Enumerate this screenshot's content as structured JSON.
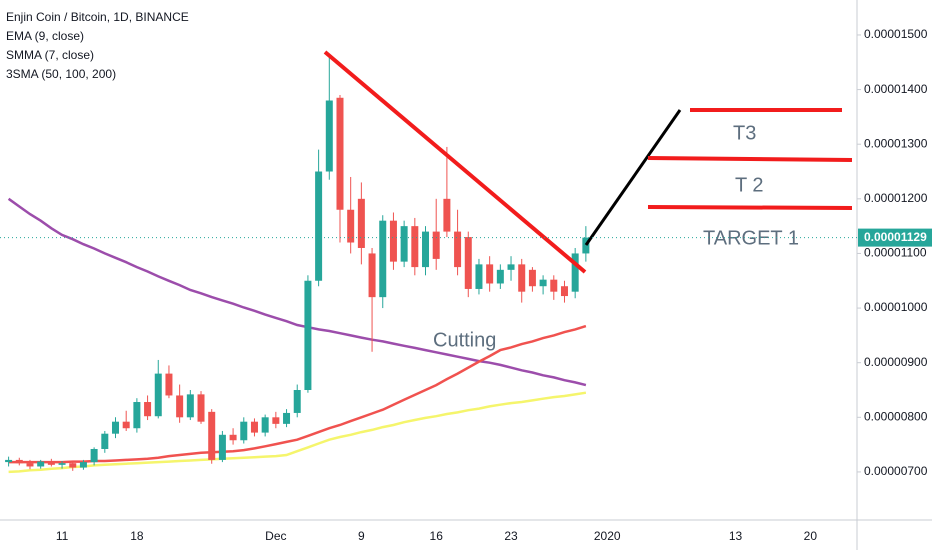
{
  "chart_data": {
    "type": "candlestick",
    "title": "Enjin Coin / Bitcoin, 1D, BINANCE",
    "indicators": [
      "EMA (9, close)",
      "SMMA (7, close)",
      "3SMA (50, 100, 200)"
    ],
    "annotations": [
      "T3",
      "T 2",
      "TARGET 1",
      "Cutting"
    ],
    "categories": [
      null,
      null,
      null,
      null,
      null,
      "11",
      null,
      null,
      null,
      null,
      null,
      null,
      "18",
      null,
      null,
      null,
      null,
      null,
      null,
      null,
      null,
      null,
      null,
      null,
      null,
      "Dec",
      null,
      null,
      null,
      null,
      null,
      null,
      null,
      "9",
      null,
      null,
      null,
      null,
      null,
      null,
      "16",
      null,
      null,
      null,
      null,
      null,
      null,
      "23",
      null,
      null,
      null,
      null,
      null,
      null,
      null,
      null,
      "2020",
      null,
      null,
      null,
      null,
      null,
      null,
      null,
      null,
      null,
      null,
      null,
      "13",
      null,
      null,
      null,
      null,
      null,
      null,
      "20",
      null,
      null,
      null,
      null
    ],
    "open": [
      7.18e-06,
      7.22e-06,
      7.16e-06,
      7.1e-06,
      7.19e-06,
      7.13e-06,
      7.16e-06,
      7.08e-06,
      7.18e-06,
      7.42e-06,
      7.7e-06,
      7.92e-06,
      7.8e-06,
      8.28e-06,
      8.02e-06,
      8.8e-06,
      8.4e-06,
      8e-06,
      8.42e-06,
      8.1e-06,
      7.22e-06,
      7.68e-06,
      7.58e-06,
      7.92e-06,
      7.72e-06,
      8e-06,
      7.88e-06,
      8.08e-06,
      8.5e-06,
      1.05e-05,
      1.25e-05,
      1.385e-05,
      1.18e-05,
      1.2e-05,
      1.1e-05,
      1.02e-05,
      1.16e-05,
      1.085e-05,
      1.15e-05,
      1.075e-05,
      1.14e-05,
      1.2e-05,
      1.14e-05,
      1.13e-05,
      1.035e-05,
      1.08e-05,
      1.045e-05,
      1.07e-05,
      1.08e-05,
      1.07e-05,
      1.04e-05,
      1.052e-05,
      1.04e-05,
      1.03e-05,
      1.1e-05,
      null,
      null,
      null,
      null,
      null,
      null,
      null,
      null,
      null,
      null,
      null,
      null,
      null,
      null,
      null,
      null,
      null,
      null,
      null,
      null,
      null,
      null,
      null,
      null,
      null
    ],
    "high": [
      7.28e-06,
      7.26e-06,
      7.22e-06,
      7.22e-06,
      7.24e-06,
      7.2e-06,
      7.2e-06,
      7.22e-06,
      7.45e-06,
      7.75e-06,
      8e-06,
      8.12e-06,
      8.35e-06,
      8.4e-06,
      9.05e-06,
      8.95e-06,
      8.6e-06,
      8.5e-06,
      8.48e-06,
      8.15e-06,
      7.75e-06,
      7.8e-06,
      8e-06,
      7.98e-06,
      8.05e-06,
      8.1e-06,
      8.15e-06,
      8.6e-06,
      1.06e-05,
      1.29e-05,
      1.465e-05,
      1.39e-05,
      1.24e-05,
      1.23e-05,
      1.11e-05,
      1.17e-05,
      1.175e-05,
      1.16e-05,
      1.165e-05,
      1.15e-05,
      1.2e-05,
      1.295e-05,
      1.18e-05,
      1.14e-05,
      1.09e-05,
      1.095e-05,
      1.08e-05,
      1.095e-05,
      1.09e-05,
      1.075e-05,
      1.06e-05,
      1.06e-05,
      1.05e-05,
      1.11e-05,
      1.15e-05,
      null,
      null,
      null,
      null,
      null,
      null,
      null,
      null,
      null,
      null,
      null,
      null,
      null,
      null,
      null,
      null,
      null,
      null,
      null,
      null,
      null,
      null,
      null,
      null,
      null
    ],
    "low": [
      7.1e-06,
      7.12e-06,
      7.05e-06,
      7.06e-06,
      7.1e-06,
      7.06e-06,
      7.02e-06,
      7.04e-06,
      7.12e-06,
      7.35e-06,
      7.62e-06,
      7.75e-06,
      7.72e-06,
      7.95e-06,
      7.98e-06,
      8.35e-06,
      7.9e-06,
      7.95e-06,
      7.88e-06,
      7.15e-06,
      7.18e-06,
      7.5e-06,
      7.52e-06,
      7.65e-06,
      7.65e-06,
      7.8e-06,
      7.82e-06,
      8e-06,
      8.45e-06,
      1.04e-05,
      1.235e-05,
      1.12e-05,
      1.1e-05,
      1.08e-05,
      9.2e-06,
      1e-05,
      1.07e-05,
      1.075e-05,
      1.06e-05,
      1.06e-05,
      1.07e-05,
      1.13e-05,
      1.06e-05,
      1.02e-05,
      1.025e-05,
      1.03e-05,
      1.035e-05,
      1.05e-05,
      1.01e-05,
      1.03e-05,
      1.025e-05,
      1.015e-05,
      1.01e-05,
      1.018e-05,
      1.085e-05,
      null,
      null,
      null,
      null,
      null,
      null,
      null,
      null,
      null,
      null,
      null,
      null,
      null,
      null,
      null,
      null,
      null,
      null,
      null,
      null,
      null,
      null,
      null,
      null,
      null
    ],
    "close": [
      7.22e-06,
      7.16e-06,
      7.1e-06,
      7.19e-06,
      7.13e-06,
      7.16e-06,
      7.08e-06,
      7.18e-06,
      7.42e-06,
      7.7e-06,
      7.92e-06,
      7.8e-06,
      8.28e-06,
      8.02e-06,
      8.8e-06,
      8.4e-06,
      8e-06,
      8.42e-06,
      7.92e-06,
      7.22e-06,
      7.68e-06,
      7.58e-06,
      7.92e-06,
      7.72e-06,
      8e-06,
      7.88e-06,
      8.08e-06,
      8.5e-06,
      1.05e-05,
      1.25e-05,
      1.38e-05,
      1.18e-05,
      1.12e-05,
      1.11e-05,
      1.02e-05,
      1.16e-05,
      1.085e-05,
      1.15e-05,
      1.075e-05,
      1.14e-05,
      1.09e-05,
      1.14e-05,
      1.075e-05,
      1.035e-05,
      1.08e-05,
      1.045e-05,
      1.07e-05,
      1.08e-05,
      1.03e-05,
      1.04e-05,
      1.052e-05,
      1.03e-05,
      1.022e-05,
      1.1e-05,
      1.129e-05,
      null,
      null,
      null,
      null,
      null,
      null,
      null,
      null,
      null,
      null,
      null,
      null,
      null,
      null,
      null,
      null,
      null,
      null,
      null,
      null,
      null,
      null,
      null,
      null,
      null
    ],
    "up_color": "#26a69a",
    "down_color": "#ef5350",
    "series": [
      {
        "color": "#9c4dab",
        "values": [
          1.2e-05,
          1.186e-05,
          1.172e-05,
          1.16e-05,
          1.146e-05,
          1.134e-05,
          1.126e-05,
          1.117e-05,
          1.109e-05,
          1.1e-05,
          1.092e-05,
          1.084e-05,
          1.075e-05,
          1.067e-05,
          1.058e-05,
          1.05e-05,
          1.042e-05,
          1.033e-05,
          1.027e-05,
          1.02e-05,
          1.014e-05,
          1.008e-05,
          1.001e-05,
          9.95e-06,
          9.88e-06,
          9.82e-06,
          9.76e-06,
          9.69e-06,
          9.65e-06,
          9.61e-06,
          9.58e-06,
          9.54e-06,
          9.5e-06,
          9.46e-06,
          9.42e-06,
          9.39e-06,
          9.35e-06,
          9.31e-06,
          9.27e-06,
          9.23e-06,
          9.19e-06,
          9.15e-06,
          9.11e-06,
          9.07e-06,
          9.03e-06,
          9e-06,
          8.96e-06,
          8.91e-06,
          8.86e-06,
          8.82e-06,
          8.77e-06,
          8.73e-06,
          8.68e-06,
          8.64e-06,
          8.59e-06,
          null,
          null,
          null,
          null,
          null,
          null,
          null,
          null,
          null,
          null,
          null,
          null,
          null,
          null,
          null,
          null,
          null,
          null,
          null,
          null,
          null,
          null,
          null,
          null,
          null
        ]
      },
      {
        "color": "#f0524f",
        "values": [
          7.18e-06,
          7.18e-06,
          7.18e-06,
          7.18e-06,
          7.18e-06,
          7.18e-06,
          7.19e-06,
          7.19e-06,
          7.2e-06,
          7.2e-06,
          7.21e-06,
          7.22e-06,
          7.23e-06,
          7.24e-06,
          7.26e-06,
          7.29e-06,
          7.31e-06,
          7.33e-06,
          7.35e-06,
          7.36e-06,
          7.37e-06,
          7.38e-06,
          7.4e-06,
          7.43e-06,
          7.47e-06,
          7.51e-06,
          7.55e-06,
          7.59e-06,
          7.66e-06,
          7.73e-06,
          7.8e-06,
          7.86e-06,
          7.93e-06,
          8e-06,
          8.07e-06,
          8.14e-06,
          8.23e-06,
          8.32e-06,
          8.41e-06,
          8.5e-06,
          8.59e-06,
          8.7e-06,
          8.8e-06,
          8.91e-06,
          9.02e-06,
          9.12e-06,
          9.23e-06,
          9.28e-06,
          9.34e-06,
          9.39e-06,
          9.45e-06,
          9.5e-06,
          9.56e-06,
          9.61e-06,
          9.67e-06,
          null,
          null,
          null,
          null,
          null,
          null,
          null,
          null,
          null,
          null,
          null,
          null,
          null,
          null,
          null,
          null,
          null,
          null,
          null,
          null,
          null,
          null,
          null,
          null,
          null
        ]
      },
      {
        "color": "#f5f56c",
        "values": [
          7e-06,
          7.01e-06,
          7.03e-06,
          7.04e-06,
          7.06e-06,
          7.07e-06,
          7.09e-06,
          7.1e-06,
          7.12e-06,
          7.13e-06,
          7.14e-06,
          7.15e-06,
          7.16e-06,
          7.17e-06,
          7.18e-06,
          7.19e-06,
          7.2e-06,
          7.21e-06,
          7.22e-06,
          7.23e-06,
          7.24e-06,
          7.25e-06,
          7.26e-06,
          7.27e-06,
          7.28e-06,
          7.29e-06,
          7.31e-06,
          7.38e-06,
          7.45e-06,
          7.52e-06,
          7.59e-06,
          7.64e-06,
          7.68e-06,
          7.73e-06,
          7.77e-06,
          7.82e-06,
          7.86e-06,
          7.91e-06,
          7.95e-06,
          7.99e-06,
          8.02e-06,
          8.06e-06,
          8.09e-06,
          8.13e-06,
          8.16e-06,
          8.2e-06,
          8.23e-06,
          8.26e-06,
          8.28e-06,
          8.31e-06,
          8.34e-06,
          8.37e-06,
          8.39e-06,
          8.42e-06,
          8.45e-06,
          null,
          null,
          null,
          null,
          null,
          null,
          null,
          null,
          null,
          null,
          null,
          null,
          null,
          null,
          null,
          null,
          null,
          null,
          null,
          null,
          null,
          null,
          null,
          null,
          null
        ]
      }
    ],
    "ylim": [
      6.12e-06,
      1.564e-05
    ],
    "yticks": [
      {
        "value": 7e-06,
        "label": "0.00000700"
      },
      {
        "value": 8e-06,
        "label": "0.00000800"
      },
      {
        "value": 9e-06,
        "label": "0.00000900"
      },
      {
        "value": 1e-05,
        "label": "0.00001000"
      },
      {
        "value": 1.1e-05,
        "label": "0.00001100"
      },
      {
        "value": 1.2e-05,
        "label": "0.00001200"
      },
      {
        "value": 1.3e-05,
        "label": "0.00001300"
      },
      {
        "value": 1.4e-05,
        "label": "0.00001400"
      },
      {
        "value": 1.5e-05,
        "label": "0.00001500"
      }
    ],
    "last_price": {
      "value": 1.129e-05,
      "label": "0.00001129"
    },
    "price_line_color": "#26a69a"
  }
}
